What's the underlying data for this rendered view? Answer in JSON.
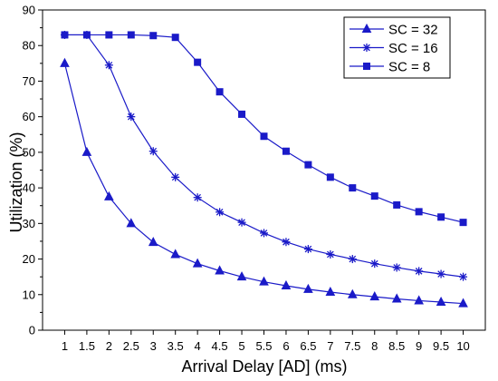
{
  "chart_data": {
    "type": "line",
    "xlabel": "Arrival Delay [AD] (ms)",
    "ylabel": "Utilization (%)",
    "xlim": [
      0.5,
      10.5
    ],
    "ylim": [
      0,
      90
    ],
    "xticks": [
      "1",
      "1.5",
      "2",
      "2.5",
      "3",
      "3.5",
      "4",
      "4.5",
      "5",
      "5.5",
      "6",
      "6.5",
      "7",
      "7.5",
      "8",
      "8.5",
      "9",
      "9.5",
      "10"
    ],
    "yticks": [
      "0",
      "10",
      "20",
      "30",
      "40",
      "50",
      "60",
      "70",
      "80",
      "90"
    ],
    "x": [
      1,
      1.5,
      2,
      2.5,
      3,
      3.5,
      4,
      4.5,
      5,
      5.5,
      6,
      6.5,
      7,
      7.5,
      8,
      8.5,
      9,
      9.5,
      10
    ],
    "grid": false,
    "legend_position": "top-right",
    "line_color": "#1a1ac8",
    "series": [
      {
        "name": "SC = 32",
        "marker": "triangle",
        "values": [
          75,
          50,
          37.5,
          30,
          24.7,
          21.3,
          18.7,
          16.7,
          15,
          13.6,
          12.5,
          11.5,
          10.7,
          10,
          9.4,
          8.8,
          8.3,
          7.9,
          7.5
        ]
      },
      {
        "name": "SC = 16",
        "marker": "star",
        "values": [
          83,
          83,
          74.5,
          60,
          50.3,
          43,
          37.3,
          33.2,
          30.3,
          27.3,
          24.8,
          22.8,
          21.3,
          20,
          18.7,
          17.6,
          16.6,
          15.8,
          15
        ]
      },
      {
        "name": "SC = 8",
        "marker": "square",
        "values": [
          83,
          83,
          83,
          83,
          82.8,
          82.3,
          75.3,
          67,
          60.7,
          54.5,
          50.3,
          46.5,
          43,
          40,
          37.7,
          35.2,
          33.3,
          31.8,
          30.3
        ]
      }
    ]
  }
}
